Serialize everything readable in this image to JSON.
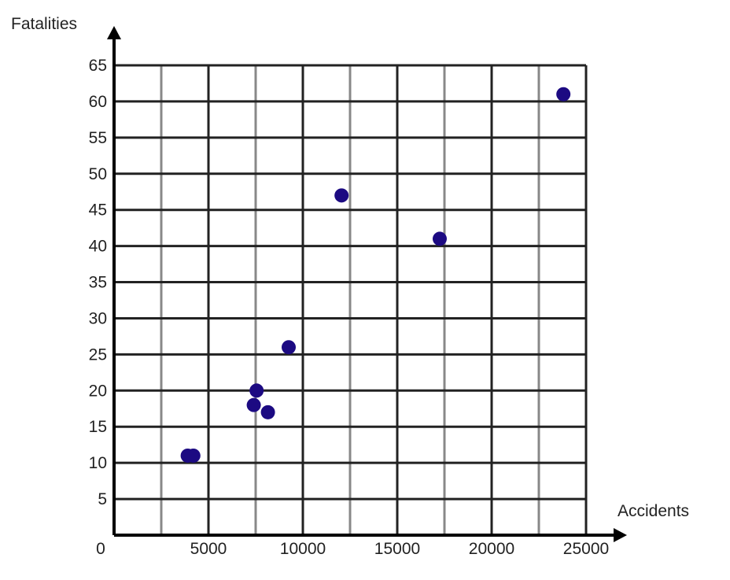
{
  "chart_data": {
    "type": "scatter",
    "title": "",
    "xlabel": "Accidents",
    "ylabel": "Fatalities",
    "xlim": [
      0,
      25000
    ],
    "ylim": [
      0,
      65
    ],
    "x_ticks": [
      0,
      5000,
      10000,
      15000,
      20000,
      25000
    ],
    "y_ticks": [
      5,
      10,
      15,
      20,
      25,
      30,
      35,
      40,
      45,
      50,
      55,
      60,
      65
    ],
    "x_grid_step": 2500,
    "y_grid_step": 5,
    "grid": true,
    "point_color": "#1c0a82",
    "points": [
      {
        "x": 3900,
        "y": 11
      },
      {
        "x": 4200,
        "y": 11
      },
      {
        "x": 7400,
        "y": 18
      },
      {
        "x": 7550,
        "y": 20
      },
      {
        "x": 8150,
        "y": 17
      },
      {
        "x": 9250,
        "y": 26
      },
      {
        "x": 12050,
        "y": 47
      },
      {
        "x": 17250,
        "y": 41
      },
      {
        "x": 23800,
        "y": 61
      }
    ]
  }
}
